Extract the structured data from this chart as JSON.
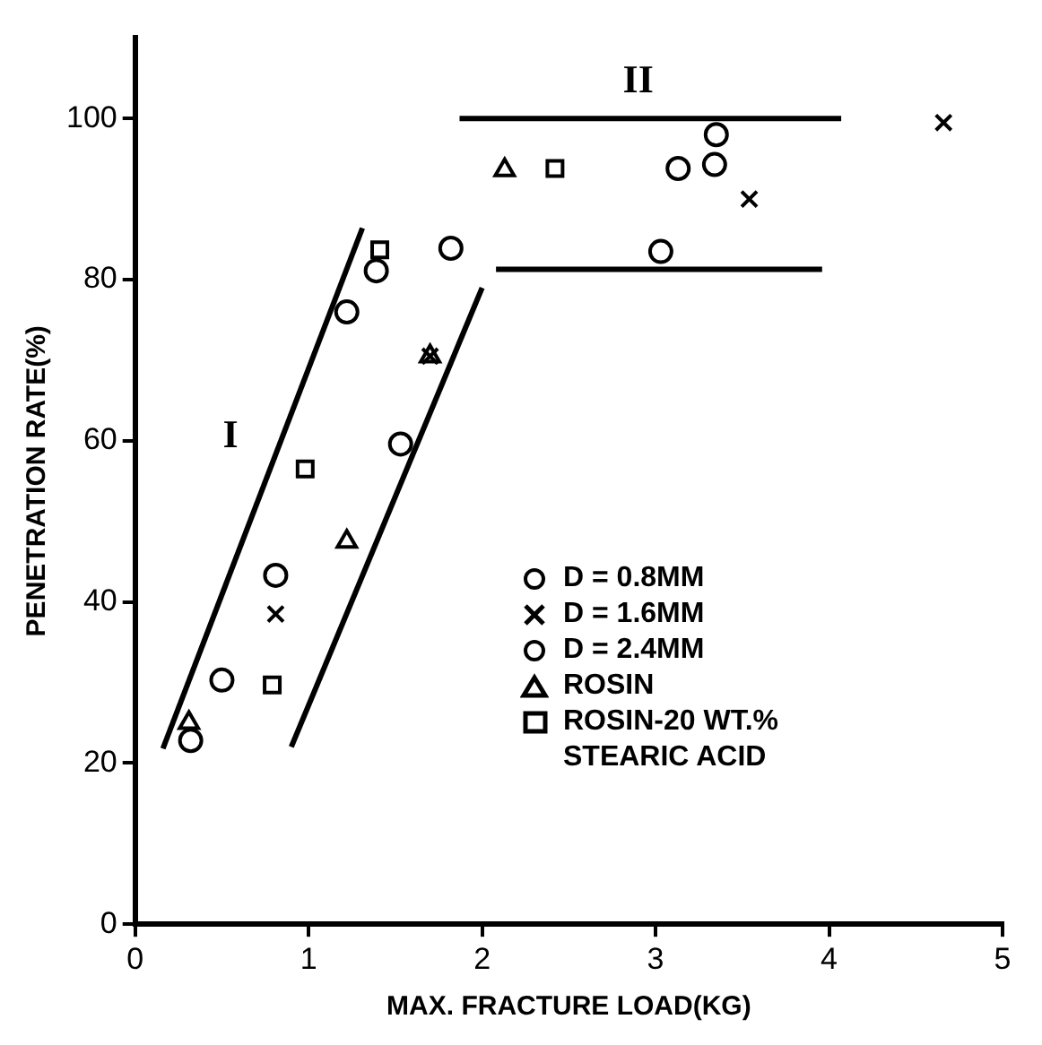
{
  "chart_data": {
    "type": "scatter",
    "xlabel": "MAX. FRACTURE LOAD(KG)",
    "ylabel": "PENETRATION RATE(%)",
    "xlim": [
      0,
      5
    ],
    "xticks": [
      0,
      1,
      2,
      3,
      4,
      5
    ],
    "ylim": [
      0,
      110
    ],
    "yticks": [
      0,
      20,
      40,
      60,
      80,
      100
    ],
    "grid": false,
    "legend": "right",
    "annotations": [
      "I",
      "II"
    ],
    "series": [
      {
        "name": "D = 0.8MM",
        "type": "scatter",
        "marker": "circle",
        "color": "#000000",
        "x": [
          0.81,
          1.39,
          3.13,
          3.35
        ],
        "values": [
          43.3,
          81.1,
          93.8,
          98
        ]
      },
      {
        "name": "D = 1.6MM",
        "type": "scatter",
        "marker": "cross",
        "color": "#000000",
        "x": [
          0.81,
          1.7,
          3.54,
          4.66
        ],
        "values": [
          38.5,
          70.5,
          90,
          99.5
        ]
      },
      {
        "name": "D = 2.4MM",
        "type": "scatter",
        "marker": "circle",
        "color": "#000000",
        "x": [
          0.32,
          0.5,
          1.22,
          1.53,
          1.82,
          3.03,
          3.34
        ],
        "values": [
          22.8,
          30.3,
          76,
          59.6,
          83.9,
          83.5,
          94.3
        ]
      },
      {
        "name": "ROSIN",
        "type": "scatter",
        "marker": "triangle",
        "color": "#000000",
        "x": [
          0.31,
          1.22,
          1.7,
          2.13
        ],
        "values": [
          25,
          47.5,
          70.5,
          93.6
        ]
      },
      {
        "name": "ROSIN-20 WT.% STEARIC ACID",
        "type": "scatter",
        "marker": "square",
        "color": "#000000",
        "x": [
          0.79,
          0.98,
          1.41,
          2.42
        ],
        "values": [
          29.7,
          56.5,
          83.7,
          93.8
        ]
      },
      {
        "type": "line",
        "marker": "none",
        "line_style": "solid",
        "color": "#000000",
        "x": [
          0.16,
          1.31
        ],
        "values": [
          21.8,
          86.4
        ]
      },
      {
        "type": "line",
        "marker": "none",
        "line_style": "solid",
        "color": "#000000",
        "x": [
          0.9,
          2.0
        ],
        "values": [
          22,
          79
        ]
      },
      {
        "type": "line",
        "marker": "none",
        "line_style": "solid",
        "color": "#000000",
        "x": [
          1.87,
          4.07
        ],
        "values": [
          100,
          100
        ]
      },
      {
        "type": "line",
        "marker": "none",
        "line_style": "solid",
        "color": "#000000",
        "x": [
          2.08,
          3.96
        ],
        "values": [
          81.3,
          81.3
        ]
      }
    ]
  }
}
